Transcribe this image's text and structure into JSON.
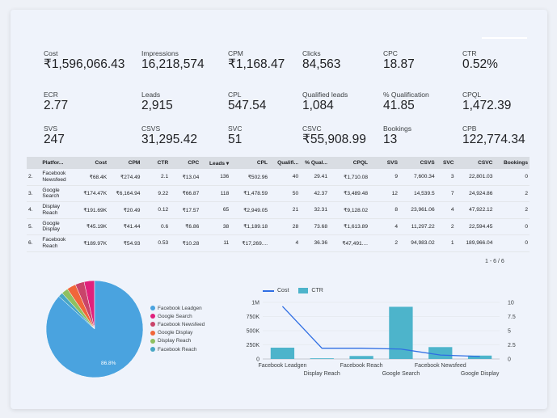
{
  "kpis": [
    {
      "label": "Cost",
      "value": "₹1,596,066.43"
    },
    {
      "label": "Impressions",
      "value": "16,218,574"
    },
    {
      "label": "CPM",
      "value": "₹1,168.47"
    },
    {
      "label": "Clicks",
      "value": "84,563"
    },
    {
      "label": "CPC",
      "value": "18.87"
    },
    {
      "label": "CTR",
      "value": "0.52%"
    },
    {
      "label": "ECR",
      "value": "2.77"
    },
    {
      "label": "Leads",
      "value": "2,915"
    },
    {
      "label": "CPL",
      "value": "547.54"
    },
    {
      "label": "Qualified leads",
      "value": "1,084"
    },
    {
      "label": "% Qualification",
      "value": "41.85"
    },
    {
      "label": "CPQL",
      "value": "1,472.39"
    },
    {
      "label": "SVS",
      "value": "247"
    },
    {
      "label": "CSVS",
      "value": "31,295.42"
    },
    {
      "label": "SVC",
      "value": "51"
    },
    {
      "label": "CSVC",
      "value": "₹55,908.99"
    },
    {
      "label": "Bookings",
      "value": "13"
    },
    {
      "label": "CPB",
      "value": "122,774.34"
    }
  ],
  "table": {
    "headers": [
      "",
      "Platfor...",
      "Cost",
      "CPM",
      "CTR",
      "CPC",
      "Leads ▾",
      "CPL",
      "Qualifi...",
      "% Qual...",
      "CPQL",
      "SVS",
      "CSVS",
      "SVC",
      "CSVC",
      "Bookings"
    ],
    "rows": [
      [
        "2.",
        "Facebook Newsfeed",
        "₹68.4K",
        "₹274.49",
        "2.1",
        "₹13.04",
        "136",
        "₹502.96",
        "40",
        "29.41",
        "₹1,710.08",
        "9",
        "7,600.34",
        "3",
        "22,801.03",
        "0"
      ],
      [
        "3.",
        "Google Search",
        "₹174.47K",
        "₹6,164.94",
        "9.22",
        "₹66.87",
        "118",
        "₹1,478.59",
        "50",
        "42.37",
        "₹3,489.48",
        "12",
        "14,539.5",
        "7",
        "24,924.86",
        "2"
      ],
      [
        "4.",
        "Display Reach",
        "₹191.69K",
        "₹20.49",
        "0.12",
        "₹17.57",
        "65",
        "₹2,949.05",
        "21",
        "32.31",
        "₹9,128.02",
        "8",
        "23,961.06",
        "4",
        "47,922.12",
        "2"
      ],
      [
        "5.",
        "Google Display",
        "₹45.19K",
        "₹41.44",
        "0.6",
        "₹6.86",
        "38",
        "₹1,189.18",
        "28",
        "73.68",
        "₹1,613.89",
        "4",
        "11,297.22",
        "2",
        "22,594.45",
        "0"
      ],
      [
        "6.",
        "Facebook Reach",
        "₹189.97K",
        "₹54.93",
        "0.53",
        "₹10.28",
        "11",
        "₹17,269....",
        "4",
        "36.36",
        "₹47,491....",
        "2",
        "94,983.02",
        "1",
        "189,966.04",
        "0"
      ]
    ],
    "pager": "1 - 6 / 6"
  },
  "pie": {
    "legend": [
      {
        "label": "Facebook Leadgen",
        "color": "#4aa3df"
      },
      {
        "label": "Google Search",
        "color": "#e0217c"
      },
      {
        "label": "Facebook Newsfeed",
        "color": "#c9446a"
      },
      {
        "label": "Google Display",
        "color": "#f0663a"
      },
      {
        "label": "Display Reach",
        "color": "#8fc060"
      },
      {
        "label": "Facebook Reach",
        "color": "#48a7c4"
      }
    ],
    "label": "86.8%"
  },
  "chart_data": {
    "type": "bar",
    "categories": [
      "Facebook Leadgen",
      "Display Reach",
      "Facebook Reach",
      "Google Search",
      "Facebook Newsfeed",
      "Google Display"
    ],
    "series": [
      {
        "name": "Cost",
        "kind": "line",
        "axis": "left",
        "values": [
          930000,
          190000,
          190000,
          175000,
          70000,
          45000
        ],
        "color": "#2f6ee3"
      },
      {
        "name": "CTR",
        "kind": "bar",
        "axis": "right",
        "values": [
          2,
          0.12,
          0.53,
          9.22,
          2.1,
          0.6
        ],
        "color": "#4db4cb"
      }
    ],
    "left_ticks": [
      "0",
      "250K",
      "500K",
      "750K",
      "1M"
    ],
    "left_range": [
      0,
      1000000
    ],
    "right_ticks": [
      "0",
      "2.5",
      "5",
      "7.5",
      "10"
    ],
    "right_range": [
      0,
      10
    ]
  }
}
